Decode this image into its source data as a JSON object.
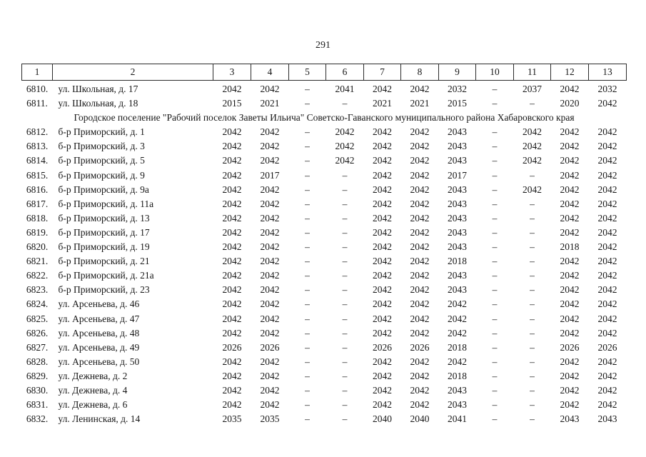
{
  "page": {
    "number": "291"
  },
  "table": {
    "header_cols": [
      "1",
      "2",
      "3",
      "4",
      "5",
      "6",
      "7",
      "8",
      "9",
      "10",
      "11",
      "12",
      "13"
    ],
    "rows": [
      {
        "type": "data",
        "num": "6810.",
        "address": "ул. Школьная, д. 17",
        "values": [
          "2042",
          "2042",
          "–",
          "2041",
          "2042",
          "2042",
          "2032",
          "–",
          "2037",
          "2042",
          "2032"
        ]
      },
      {
        "type": "data",
        "num": "6811.",
        "address": "ул. Школьная, д. 18",
        "values": [
          "2015",
          "2021",
          "–",
          "–",
          "2021",
          "2021",
          "2015",
          "–",
          "–",
          "2020",
          "2042"
        ]
      },
      {
        "type": "section",
        "label": "Городское поселение \"Рабочий поселок Заветы Ильича\" Советско-Гаванского муниципального района Хабаровского края"
      },
      {
        "type": "data",
        "num": "6812.",
        "address": "б-р Приморский, д. 1",
        "values": [
          "2042",
          "2042",
          "–",
          "2042",
          "2042",
          "2042",
          "2043",
          "–",
          "2042",
          "2042",
          "2042"
        ]
      },
      {
        "type": "data",
        "num": "6813.",
        "address": "б-р Приморский, д. 3",
        "values": [
          "2042",
          "2042",
          "–",
          "2042",
          "2042",
          "2042",
          "2043",
          "–",
          "2042",
          "2042",
          "2042"
        ]
      },
      {
        "type": "data",
        "num": "6814.",
        "address": "б-р Приморский, д. 5",
        "values": [
          "2042",
          "2042",
          "–",
          "2042",
          "2042",
          "2042",
          "2043",
          "–",
          "2042",
          "2042",
          "2042"
        ]
      },
      {
        "type": "data",
        "num": "6815.",
        "address": "б-р Приморский, д. 9",
        "values": [
          "2042",
          "2017",
          "–",
          "–",
          "2042",
          "2042",
          "2017",
          "–",
          "–",
          "2042",
          "2042"
        ]
      },
      {
        "type": "data",
        "num": "6816.",
        "address": "б-р Приморский, д. 9а",
        "values": [
          "2042",
          "2042",
          "–",
          "–",
          "2042",
          "2042",
          "2043",
          "–",
          "2042",
          "2042",
          "2042"
        ]
      },
      {
        "type": "data",
        "num": "6817.",
        "address": "б-р Приморский, д. 11а",
        "values": [
          "2042",
          "2042",
          "–",
          "–",
          "2042",
          "2042",
          "2043",
          "–",
          "–",
          "2042",
          "2042"
        ]
      },
      {
        "type": "data",
        "num": "6818.",
        "address": "б-р Приморский, д. 13",
        "values": [
          "2042",
          "2042",
          "–",
          "–",
          "2042",
          "2042",
          "2043",
          "–",
          "–",
          "2042",
          "2042"
        ]
      },
      {
        "type": "data",
        "num": "6819.",
        "address": "б-р Приморский, д. 17",
        "values": [
          "2042",
          "2042",
          "–",
          "–",
          "2042",
          "2042",
          "2043",
          "–",
          "–",
          "2042",
          "2042"
        ]
      },
      {
        "type": "data",
        "num": "6820.",
        "address": "б-р Приморский, д. 19",
        "values": [
          "2042",
          "2042",
          "–",
          "–",
          "2042",
          "2042",
          "2043",
          "–",
          "–",
          "2018",
          "2042"
        ]
      },
      {
        "type": "data",
        "num": "6821.",
        "address": "б-р Приморский, д. 21",
        "values": [
          "2042",
          "2042",
          "–",
          "–",
          "2042",
          "2042",
          "2018",
          "–",
          "–",
          "2042",
          "2042"
        ]
      },
      {
        "type": "data",
        "num": "6822.",
        "address": "б-р Приморский, д. 21а",
        "values": [
          "2042",
          "2042",
          "–",
          "–",
          "2042",
          "2042",
          "2043",
          "–",
          "–",
          "2042",
          "2042"
        ]
      },
      {
        "type": "data",
        "num": "6823.",
        "address": "б-р Приморский, д. 23",
        "values": [
          "2042",
          "2042",
          "–",
          "–",
          "2042",
          "2042",
          "2043",
          "–",
          "–",
          "2042",
          "2042"
        ]
      },
      {
        "type": "data",
        "num": "6824.",
        "address": "ул. Арсеньева, д. 46",
        "values": [
          "2042",
          "2042",
          "–",
          "–",
          "2042",
          "2042",
          "2042",
          "–",
          "–",
          "2042",
          "2042"
        ]
      },
      {
        "type": "data",
        "num": "6825.",
        "address": "ул. Арсеньева, д. 47",
        "values": [
          "2042",
          "2042",
          "–",
          "–",
          "2042",
          "2042",
          "2042",
          "–",
          "–",
          "2042",
          "2042"
        ]
      },
      {
        "type": "data",
        "num": "6826.",
        "address": "ул. Арсеньева, д. 48",
        "values": [
          "2042",
          "2042",
          "–",
          "–",
          "2042",
          "2042",
          "2042",
          "–",
          "–",
          "2042",
          "2042"
        ]
      },
      {
        "type": "data",
        "num": "6827.",
        "address": "ул. Арсеньева, д. 49",
        "values": [
          "2026",
          "2026",
          "–",
          "–",
          "2026",
          "2026",
          "2018",
          "–",
          "–",
          "2026",
          "2026"
        ]
      },
      {
        "type": "data",
        "num": "6828.",
        "address": "ул. Арсеньева, д. 50",
        "values": [
          "2042",
          "2042",
          "–",
          "–",
          "2042",
          "2042",
          "2042",
          "–",
          "–",
          "2042",
          "2042"
        ]
      },
      {
        "type": "data",
        "num": "6829.",
        "address": "ул. Дежнева, д. 2",
        "values": [
          "2042",
          "2042",
          "–",
          "–",
          "2042",
          "2042",
          "2018",
          "–",
          "–",
          "2042",
          "2042"
        ]
      },
      {
        "type": "data",
        "num": "6830.",
        "address": "ул. Дежнева, д. 4",
        "values": [
          "2042",
          "2042",
          "–",
          "–",
          "2042",
          "2042",
          "2043",
          "–",
          "–",
          "2042",
          "2042"
        ]
      },
      {
        "type": "data",
        "num": "6831.",
        "address": "ул. Дежнева, д. 6",
        "values": [
          "2042",
          "2042",
          "–",
          "–",
          "2042",
          "2042",
          "2043",
          "–",
          "–",
          "2042",
          "2042"
        ]
      },
      {
        "type": "data",
        "num": "6832.",
        "address": "ул. Ленинская, д. 14",
        "values": [
          "2035",
          "2035",
          "–",
          "–",
          "2040",
          "2040",
          "2041",
          "–",
          "–",
          "2043",
          "2043"
        ]
      }
    ]
  }
}
